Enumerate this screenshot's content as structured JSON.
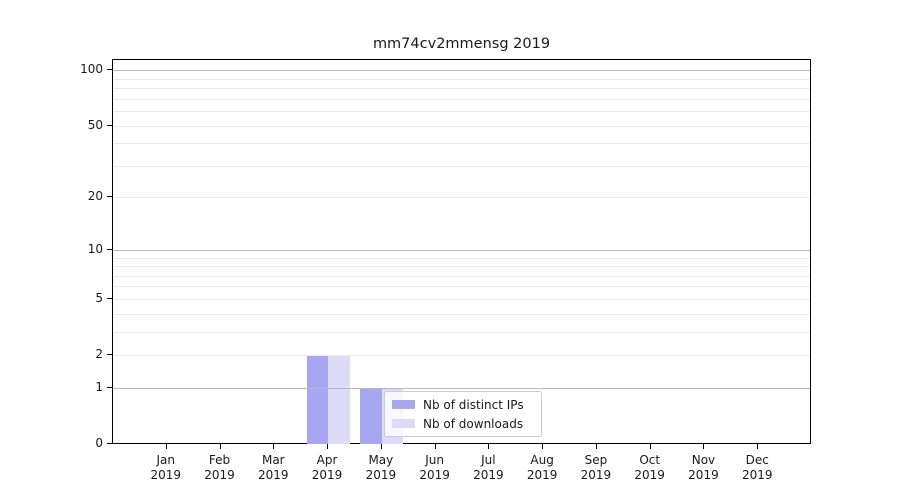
{
  "chart_data": {
    "type": "bar",
    "title": "mm74cv2mmensg 2019",
    "categories": [
      "Jan",
      "Feb",
      "Mar",
      "Apr",
      "May",
      "Jun",
      "Jul",
      "Aug",
      "Sep",
      "Oct",
      "Nov",
      "Dec"
    ],
    "category_year": "2019",
    "series": [
      {
        "name": "Nb of distinct IPs",
        "color": "#a6a6f1",
        "values": [
          0,
          0,
          0,
          2,
          1,
          0,
          0,
          0,
          0,
          0,
          0,
          0
        ]
      },
      {
        "name": "Nb of downloads",
        "color": "#dcdcf9",
        "values": [
          0,
          0,
          0,
          2,
          1,
          0,
          0,
          0,
          0,
          0,
          0,
          0
        ]
      }
    ],
    "y_ticks": [
      0,
      1,
      2,
      5,
      10,
      20,
      50,
      100
    ],
    "grid_major": [
      1,
      10,
      100
    ],
    "grid_minor": [
      2,
      3,
      4,
      5,
      6,
      7,
      8,
      9,
      20,
      30,
      40,
      50,
      60,
      70,
      80,
      90
    ],
    "scale": "log1p",
    "ylim": [
      0,
      115
    ],
    "grid": true,
    "legend_position": "lower center"
  }
}
